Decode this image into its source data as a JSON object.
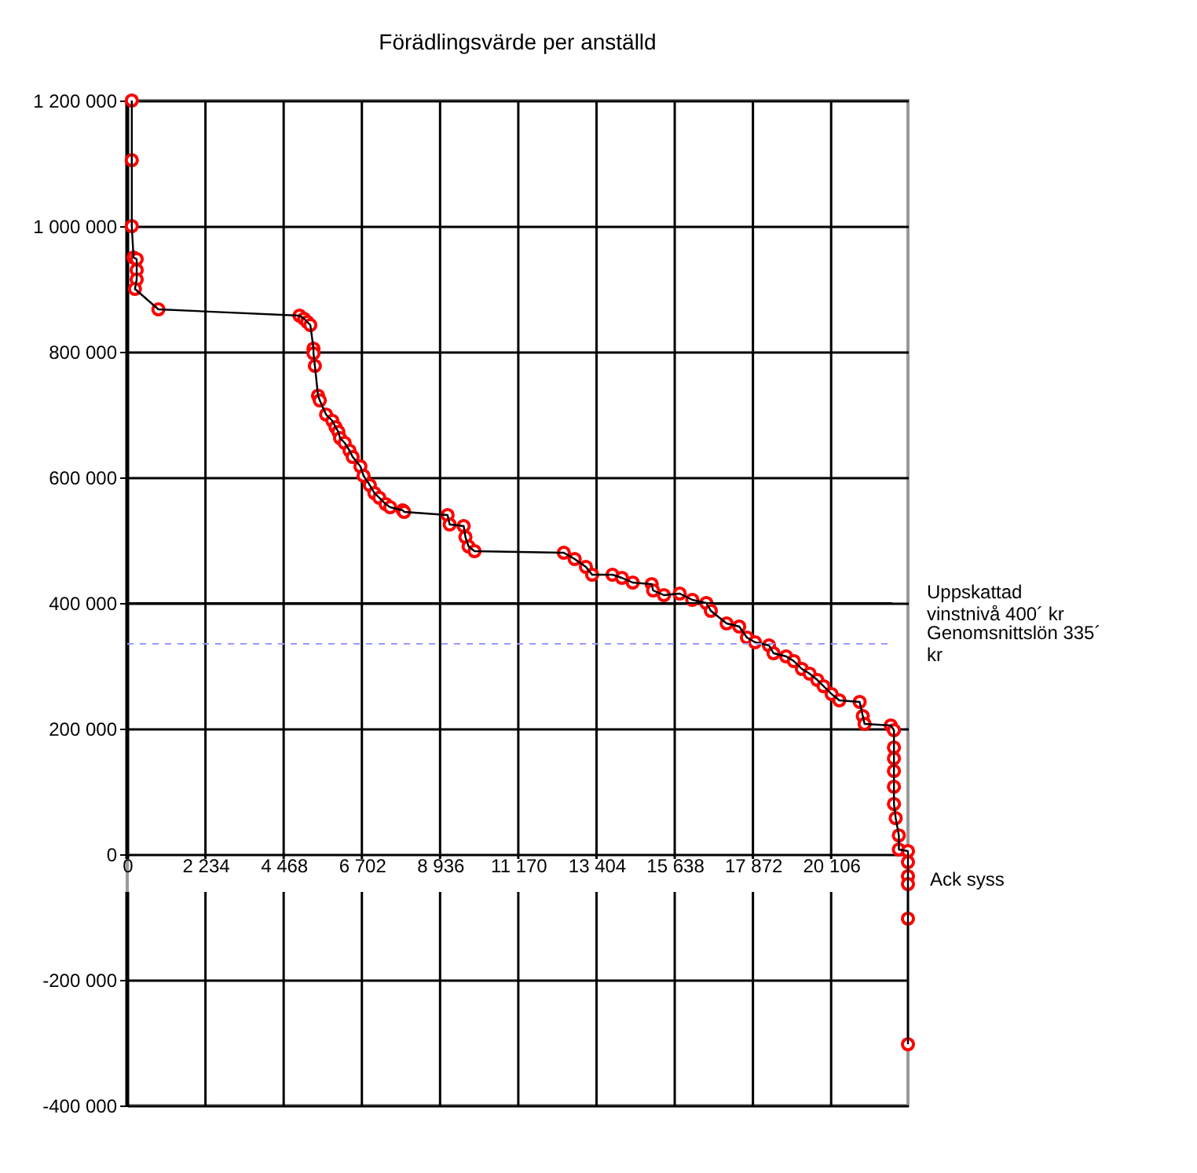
{
  "chart_data": {
    "type": "line",
    "title": "Förädlingsvärde per anställd",
    "x": [
      130,
      130,
      130,
      180,
      270,
      270,
      270,
      220,
      890,
      4920,
      5050,
      5140,
      5230,
      5320,
      5320,
      5360,
      5450,
      5500,
      5680,
      5860,
      5950,
      6030,
      6080,
      6210,
      6350,
      6440,
      6660,
      6750,
      6930,
      7060,
      7200,
      7380,
      7510,
      7870,
      7910,
      9150,
      9210,
      9610,
      9660,
      9750,
      9920,
      12470,
      12780,
      13100,
      13280,
      13860,
      14130,
      14440,
      14980,
      15020,
      15330,
      15780,
      16140,
      16540,
      16670,
      17120,
      17480,
      17700,
      17930,
      18330,
      18460,
      18820,
      19040,
      19270,
      19490,
      19710,
      19890,
      20120,
      20340,
      20920,
      21010,
      21060,
      21810,
      21900,
      21900,
      21900,
      21900,
      21900,
      21900,
      21950,
      22040,
      22040,
      22300,
      22300,
      22300,
      22300,
      22300,
      22300
    ],
    "series": [
      {
        "color": "#ff0000",
        "values": [
          1200000,
          1105000,
          1000000,
          950000,
          947500,
          930000,
          915000,
          900000,
          867500,
          857500,
          852500,
          847500,
          842500,
          805000,
          797500,
          777500,
          730000,
          722500,
          700000,
          690000,
          680000,
          672500,
          662500,
          655000,
          642500,
          632500,
          617500,
          602500,
          587500,
          575000,
          567500,
          557500,
          552500,
          547500,
          545000,
          540000,
          525000,
          522500,
          505000,
          490000,
          482500,
          480000,
          470000,
          457500,
          445000,
          445000,
          440000,
          432500,
          430000,
          420000,
          412500,
          415000,
          405000,
          400000,
          387500,
          367500,
          362500,
          345000,
          337500,
          332500,
          320000,
          315000,
          307500,
          295000,
          287500,
          277500,
          267500,
          255000,
          245000,
          242500,
          220000,
          207500,
          205000,
          197500,
          170000,
          152500,
          132500,
          107500,
          80000,
          57500,
          30000,
          7500,
          5000,
          -12500,
          -35000,
          -47500,
          -102500,
          -302500
        ]
      }
    ],
    "xlim": [
      0,
      22300
    ],
    "xticks": [
      0,
      {
        "value": 2234,
        "label": "2 234"
      },
      {
        "value": 4468,
        "label": "4 468"
      },
      {
        "value": 6702,
        "label": "6 702"
      },
      {
        "value": 8936,
        "label": "8 936"
      },
      {
        "value": 11170,
        "label": "11 170"
      },
      {
        "value": 13404,
        "label": "13 404"
      },
      {
        "value": 15638,
        "label": "15 638"
      },
      {
        "value": 17872,
        "label": "17 872"
      },
      {
        "value": 20106,
        "label": "20 106"
      }
    ],
    "ylim": [
      -400000,
      1200000
    ],
    "yticks": [
      {
        "value": -400000,
        "label": "-400 000"
      },
      {
        "value": -200000,
        "label": "-200 000"
      },
      0,
      {
        "value": 200000,
        "label": "200 000"
      },
      {
        "value": 400000,
        "label": "400 000"
      },
      {
        "value": 600000,
        "label": "600 000"
      },
      {
        "value": 800000,
        "label": "800 000"
      },
      {
        "value": 1000000,
        "label": "1 000 000"
      },
      {
        "value": 1200000,
        "label": "1 200 000"
      }
    ],
    "grid": true,
    "marker": "circle",
    "line_style": "solid",
    "ref_lines": [
      {
        "axis": "y",
        "value": 400000,
        "label": "Uppskattad vinstnivå 400´ kr",
        "color": "#000000",
        "line_style": "solid"
      },
      {
        "axis": "y",
        "value": 335000,
        "label": "Genomsnittslön 335´ kr",
        "color": "#9999ff",
        "line_style": "dashed"
      }
    ],
    "annotations": [
      {
        "text": "Ack syss",
        "x": 22300,
        "y": -40000
      }
    ]
  }
}
